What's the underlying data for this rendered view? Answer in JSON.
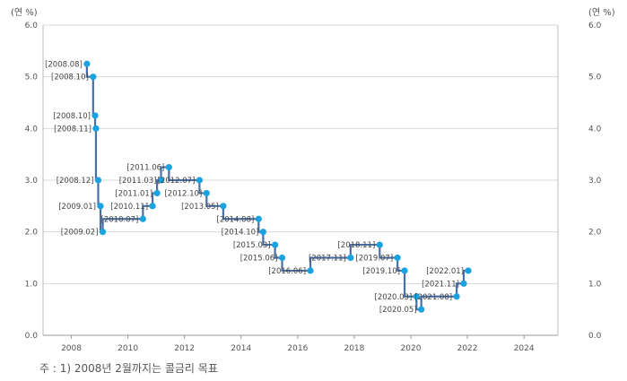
{
  "footnote": "주 : 1) 2008년 2월까지는 콜금리 목표",
  "chart_data": {
    "type": "line",
    "step": true,
    "y_unit_left": "(연 %)",
    "y_unit_right": "(연 %)",
    "ylim": [
      0,
      6
    ],
    "xlim": [
      2007.0,
      2025.2
    ],
    "yticks": [
      "0.0",
      "1.0",
      "2.0",
      "3.0",
      "4.0",
      "5.0",
      "6.0"
    ],
    "xticks": [
      2008,
      2010,
      2012,
      2014,
      2016,
      2018,
      2020,
      2022,
      2024
    ],
    "grid": {
      "horizontal": true,
      "vertical": false
    },
    "line_color": "#4a6fa5",
    "marker_color": "#1aa3e0",
    "series": [
      {
        "points": [
          {
            "x": 2008.55,
            "y": 5.25,
            "label": "[2008.08]"
          },
          {
            "x": 2008.77,
            "y": 5.0,
            "label": "[2008.10]"
          },
          {
            "x": 2008.84,
            "y": 4.25,
            "label": "[2008.10]"
          },
          {
            "x": 2008.87,
            "y": 4.0,
            "label": "[2008.11]"
          },
          {
            "x": 2008.95,
            "y": 3.0,
            "label": "[2008.12]"
          },
          {
            "x": 2009.03,
            "y": 2.5,
            "label": "[2009.01]"
          },
          {
            "x": 2009.11,
            "y": 2.0,
            "label": "[2009.02]"
          },
          {
            "x": 2010.53,
            "y": 2.25,
            "label": "[2010.07]"
          },
          {
            "x": 2010.87,
            "y": 2.5,
            "label": "[2010.11]"
          },
          {
            "x": 2011.03,
            "y": 2.75,
            "label": "[2011.01]"
          },
          {
            "x": 2011.17,
            "y": 3.0,
            "label": "[2011.03]"
          },
          {
            "x": 2011.45,
            "y": 3.25,
            "label": "[2011.06]"
          },
          {
            "x": 2012.53,
            "y": 3.0,
            "label": "[2012.07]"
          },
          {
            "x": 2012.78,
            "y": 2.75,
            "label": "[2012.10]"
          },
          {
            "x": 2013.37,
            "y": 2.5,
            "label": "[2013.05]"
          },
          {
            "x": 2014.62,
            "y": 2.25,
            "label": "[2014.08]"
          },
          {
            "x": 2014.78,
            "y": 2.0,
            "label": "[2014.10]"
          },
          {
            "x": 2015.2,
            "y": 1.75,
            "label": "[2015.03]"
          },
          {
            "x": 2015.45,
            "y": 1.5,
            "label": "[2015.06]"
          },
          {
            "x": 2016.45,
            "y": 1.25,
            "label": "[2016.06]"
          },
          {
            "x": 2017.87,
            "y": 1.5,
            "label": "[2017.11]"
          },
          {
            "x": 2018.9,
            "y": 1.75,
            "label": "[2018.11]"
          },
          {
            "x": 2019.53,
            "y": 1.5,
            "label": "[2019.07]"
          },
          {
            "x": 2019.78,
            "y": 1.25,
            "label": "[2019.10]"
          },
          {
            "x": 2020.2,
            "y": 0.75,
            "label": "[2020.03]"
          },
          {
            "x": 2020.37,
            "y": 0.5,
            "label": "[2020.05]"
          },
          {
            "x": 2021.62,
            "y": 0.75,
            "label": "[2021.08]"
          },
          {
            "x": 2021.87,
            "y": 1.0,
            "label": "[2021.11]"
          },
          {
            "x": 2022.03,
            "y": 1.25,
            "label": "[2022.01]"
          }
        ]
      }
    ]
  }
}
